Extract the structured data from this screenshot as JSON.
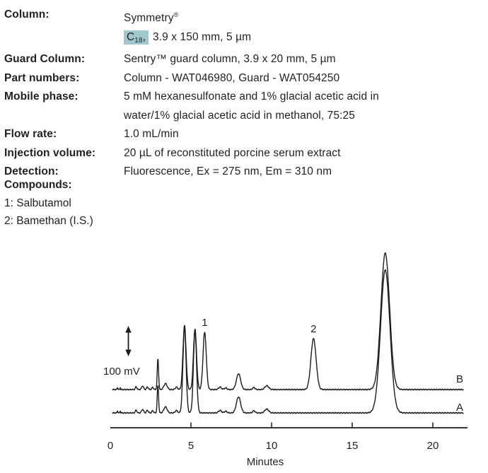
{
  "text_color": "#231f20",
  "highlight_color": "#9fc8cc",
  "method": {
    "rows": [
      {
        "label": "Column:",
        "value_pre": "Symmetry",
        "value_trademark": "®",
        "highlight_main": "C",
        "highlight_sub": "18",
        "highlight_tail": ",",
        "value_post": "3.9 x 150 mm, 5 µm"
      },
      {
        "label": "Guard Column:",
        "value": "Sentry™ guard column, 3.9 x 20 mm, 5 µm"
      },
      {
        "label": "Part numbers:",
        "value": "Column - WAT046980, Guard - WAT054250"
      },
      {
        "label": "Mobile phase:",
        "value": "5 mM hexanesulfonate and 1% glacial acetic acid in\nwater/1% glacial acetic acid in methanol, 75:25"
      },
      {
        "label": "Flow rate:",
        "value": "1.0 mL/min"
      },
      {
        "label": "Injection volume:",
        "value": "20 µL of reconstituted porcine serum extract"
      },
      {
        "label": "Detection:",
        "value": "Fluorescence, Ex = 275 nm, Em = 310 nm"
      }
    ]
  },
  "compounds": {
    "header": "Compounds:",
    "items": [
      "1: Salbutamol",
      "2: Bamethan (I.S.)"
    ]
  },
  "chart_data": {
    "type": "line",
    "xlabel": "Minutes",
    "x_ticks": [
      0,
      5,
      10,
      15,
      20
    ],
    "x_range_minutes": [
      0,
      22
    ],
    "grid": false,
    "y_scale_bar": {
      "label": "100 mV",
      "millivolts": 100
    },
    "trace_labels": [
      "B",
      "A"
    ],
    "peak_annotations": [
      {
        "label": "1",
        "time_min": 5.85
      },
      {
        "label": "2",
        "time_min": 12.6
      }
    ],
    "traces": [
      {
        "name": "B",
        "position": "upper",
        "peaks_t_mv_sigma": [
          [
            0.45,
            9,
            0.018
          ],
          [
            0.62,
            7,
            0.018
          ],
          [
            1.6,
            10,
            0.05
          ],
          [
            2.0,
            13,
            0.06
          ],
          [
            2.3,
            10,
            0.05
          ],
          [
            2.62,
            8,
            0.05
          ],
          [
            2.95,
            112,
            0.042
          ],
          [
            3.42,
            22,
            0.1
          ],
          [
            4.1,
            9,
            0.07
          ],
          [
            4.6,
            233,
            0.095
          ],
          [
            5.25,
            220,
            0.095
          ],
          [
            5.85,
            208,
            0.1
          ],
          [
            6.8,
            9,
            0.09
          ],
          [
            7.15,
            6,
            0.08
          ],
          [
            7.95,
            58,
            0.13
          ],
          [
            8.9,
            8,
            0.07
          ],
          [
            9.7,
            14,
            0.12
          ],
          [
            12.6,
            185,
            0.16
          ],
          [
            17.05,
            495,
            0.27
          ]
        ]
      },
      {
        "name": "A",
        "position": "lower",
        "peaks_t_mv_sigma": [
          [
            0.45,
            9,
            0.018
          ],
          [
            0.62,
            7,
            0.018
          ],
          [
            1.6,
            10,
            0.05
          ],
          [
            2.0,
            13,
            0.06
          ],
          [
            2.3,
            10,
            0.05
          ],
          [
            2.62,
            8,
            0.05
          ],
          [
            2.95,
            100,
            0.042
          ],
          [
            3.42,
            22,
            0.1
          ],
          [
            4.1,
            9,
            0.07
          ],
          [
            4.6,
            313,
            0.095
          ],
          [
            5.25,
            300,
            0.095
          ],
          [
            6.8,
            9,
            0.09
          ],
          [
            7.15,
            6,
            0.08
          ],
          [
            7.95,
            58,
            0.13
          ],
          [
            8.9,
            8,
            0.07
          ],
          [
            9.7,
            14,
            0.12
          ],
          [
            17.05,
            518,
            0.29
          ]
        ]
      }
    ]
  }
}
